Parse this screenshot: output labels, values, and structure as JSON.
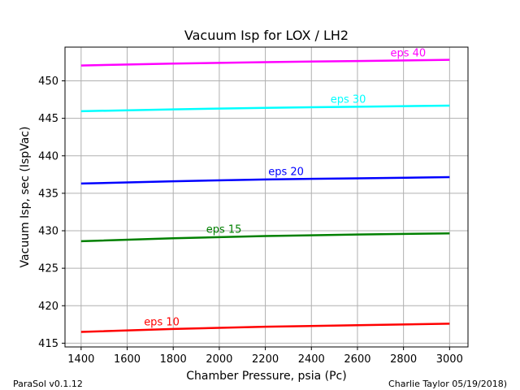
{
  "chart_data": {
    "type": "line",
    "title": "Vacuum Isp for LOX / LH2",
    "xlabel": "Chamber Pressure, psia (Pc)",
    "ylabel": "Vacuum Isp, sec (IspVac)",
    "xlim": [
      1330,
      3080
    ],
    "ylim": [
      414.5,
      454.5
    ],
    "xticks": [
      1400,
      1600,
      1800,
      2000,
      2200,
      2400,
      2600,
      2800,
      3000
    ],
    "yticks": [
      415,
      420,
      425,
      430,
      435,
      440,
      445,
      450
    ],
    "grid": true,
    "legend": "none",
    "series": [
      {
        "name": "eps 10",
        "color": "#ff0000",
        "label_at": 1750,
        "x": [
          1400,
          1800,
          2200,
          2600,
          3000
        ],
        "values": [
          416.5,
          416.9,
          417.2,
          417.4,
          417.6
        ]
      },
      {
        "name": "eps 15",
        "color": "#008000",
        "label_at": 2020,
        "x": [
          1400,
          1800,
          2200,
          2600,
          3000
        ],
        "values": [
          428.6,
          429.0,
          429.3,
          429.5,
          429.65
        ]
      },
      {
        "name": "eps 20",
        "color": "#0000ff",
        "label_at": 2290,
        "x": [
          1400,
          1800,
          2200,
          2600,
          3000
        ],
        "values": [
          436.3,
          436.6,
          436.85,
          437.0,
          437.15
        ]
      },
      {
        "name": "eps 30",
        "color": "#00ffff",
        "label_at": 2560,
        "x": [
          1400,
          1800,
          2200,
          2600,
          3000
        ],
        "values": [
          445.95,
          446.2,
          446.4,
          446.55,
          446.7
        ]
      },
      {
        "name": "eps 40",
        "color": "#ff00ff",
        "label_at": 2820,
        "x": [
          1400,
          1800,
          2200,
          2600,
          3000
        ],
        "values": [
          452.05,
          452.3,
          452.5,
          452.65,
          452.8
        ]
      }
    ]
  },
  "footer": {
    "left": "ParaSol v0.1.12",
    "right": "Charlie Taylor 05/19/2018)"
  }
}
